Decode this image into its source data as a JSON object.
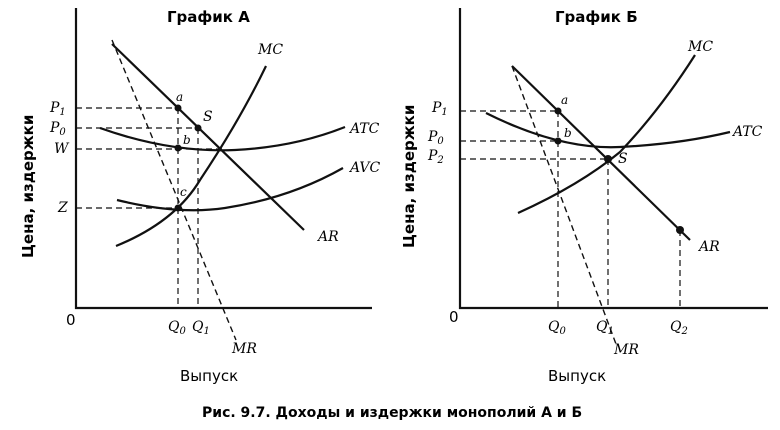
{
  "caption": "Рис. 9.7. Доходы и издержки монополий А и Б",
  "graph_a": {
    "title": "График А",
    "y_axis_title": "Цена, издержки",
    "x_axis_title": "Выпуск",
    "origin": "0",
    "curves": {
      "mc": "MC",
      "atc": "ATC",
      "avc": "AVC",
      "ar": "AR",
      "mr": "MR"
    },
    "y_ticks": [
      {
        "base": "P",
        "sub": "1"
      },
      {
        "base": "P",
        "sub": "0"
      },
      {
        "base": "W",
        "sub": ""
      },
      {
        "base": "Z",
        "sub": ""
      }
    ],
    "x_ticks": [
      {
        "base": "Q",
        "sub": "0"
      },
      {
        "base": "Q",
        "sub": "1"
      }
    ],
    "points": {
      "a": "a",
      "b": "b",
      "c": "c",
      "s": "S"
    }
  },
  "graph_b": {
    "title": "График Б",
    "y_axis_title": "Цена, издержки",
    "x_axis_title": "Выпуск",
    "origin": "0",
    "curves": {
      "mc": "MC",
      "atc": "ATC",
      "ar": "AR",
      "mr": "MR"
    },
    "y_ticks": [
      {
        "base": "P",
        "sub": "1"
      },
      {
        "base": "P",
        "sub": "0"
      },
      {
        "base": "P",
        "sub": "2"
      }
    ],
    "x_ticks": [
      {
        "base": "Q",
        "sub": "0"
      },
      {
        "base": "Q",
        "sub": "1"
      },
      {
        "base": "Q",
        "sub": "2"
      }
    ],
    "points": {
      "a": "a",
      "b": "b",
      "s": "S"
    }
  }
}
